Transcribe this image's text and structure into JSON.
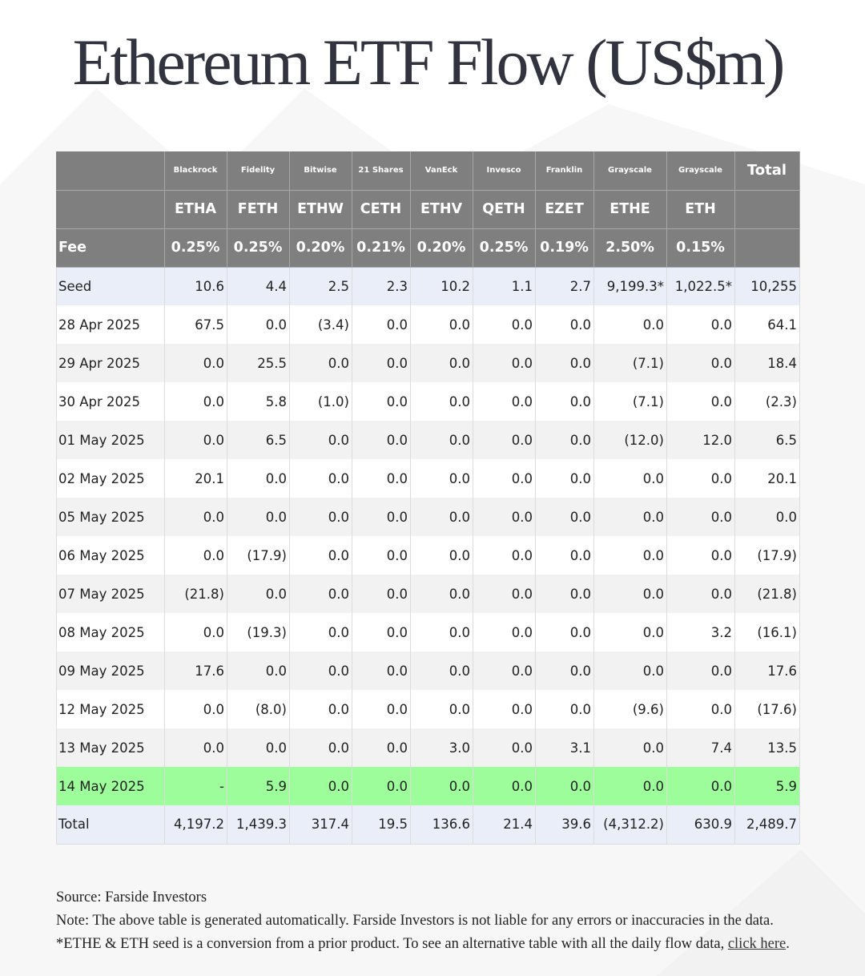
{
  "title": "Ethereum ETF Flow (US$m)",
  "header": {
    "issuers": [
      "",
      "Blackrock",
      "Fidelity",
      "Bitwise",
      "21 Shares",
      "VanEck",
      "Invesco",
      "Franklin",
      "Grayscale",
      "Grayscale"
    ],
    "total_label": "Total",
    "tickers": [
      "",
      "ETHA",
      "FETH",
      "ETHW",
      "CETH",
      "ETHV",
      "QETH",
      "EZET",
      "ETHE",
      "ETH",
      ""
    ],
    "fee_label": "Fee",
    "fees": [
      "0.25%",
      "0.25%",
      "0.20%",
      "0.21%",
      "0.20%",
      "0.25%",
      "0.19%",
      "2.50%",
      "0.15%",
      ""
    ]
  },
  "rows": [
    {
      "cells": [
        "Seed",
        "10.6",
        "4.4",
        "2.5",
        "2.3",
        "10.2",
        "1.1",
        "2.7",
        "9,199.3*",
        "1,022.5*",
        "10,255"
      ]
    },
    {
      "cells": [
        "28 Apr 2025",
        "67.5",
        "0.0",
        "(3.4)",
        "0.0",
        "0.0",
        "0.0",
        "0.0",
        "0.0",
        "0.0",
        "64.1"
      ]
    },
    {
      "cells": [
        "29 Apr 2025",
        "0.0",
        "25.5",
        "0.0",
        "0.0",
        "0.0",
        "0.0",
        "0.0",
        "(7.1)",
        "0.0",
        "18.4"
      ]
    },
    {
      "cells": [
        "30 Apr 2025",
        "0.0",
        "5.8",
        "(1.0)",
        "0.0",
        "0.0",
        "0.0",
        "0.0",
        "(7.1)",
        "0.0",
        "(2.3)"
      ]
    },
    {
      "cells": [
        "01 May 2025",
        "0.0",
        "6.5",
        "0.0",
        "0.0",
        "0.0",
        "0.0",
        "0.0",
        "(12.0)",
        "12.0",
        "6.5"
      ]
    },
    {
      "cells": [
        "02 May 2025",
        "20.1",
        "0.0",
        "0.0",
        "0.0",
        "0.0",
        "0.0",
        "0.0",
        "0.0",
        "0.0",
        "20.1"
      ]
    },
    {
      "cells": [
        "05 May 2025",
        "0.0",
        "0.0",
        "0.0",
        "0.0",
        "0.0",
        "0.0",
        "0.0",
        "0.0",
        "0.0",
        "0.0"
      ]
    },
    {
      "cells": [
        "06 May 2025",
        "0.0",
        "(17.9)",
        "0.0",
        "0.0",
        "0.0",
        "0.0",
        "0.0",
        "0.0",
        "0.0",
        "(17.9)"
      ]
    },
    {
      "cells": [
        "07 May 2025",
        "(21.8)",
        "0.0",
        "0.0",
        "0.0",
        "0.0",
        "0.0",
        "0.0",
        "0.0",
        "0.0",
        "(21.8)"
      ]
    },
    {
      "cells": [
        "08 May 2025",
        "0.0",
        "(19.3)",
        "0.0",
        "0.0",
        "0.0",
        "0.0",
        "0.0",
        "0.0",
        "3.2",
        "(16.1)"
      ]
    },
    {
      "cells": [
        "09 May 2025",
        "17.6",
        "0.0",
        "0.0",
        "0.0",
        "0.0",
        "0.0",
        "0.0",
        "0.0",
        "0.0",
        "17.6"
      ]
    },
    {
      "cells": [
        "12 May 2025",
        "0.0",
        "(8.0)",
        "0.0",
        "0.0",
        "0.0",
        "0.0",
        "0.0",
        "(9.6)",
        "0.0",
        "(17.6)"
      ]
    },
    {
      "cells": [
        "13 May 2025",
        "0.0",
        "0.0",
        "0.0",
        "0.0",
        "3.0",
        "0.0",
        "3.1",
        "0.0",
        "7.4",
        "13.5"
      ]
    },
    {
      "cells": [
        "14 May 2025",
        "-",
        "5.9",
        "0.0",
        "0.0",
        "0.0",
        "0.0",
        "0.0",
        "0.0",
        "0.0",
        "5.9"
      ],
      "highlight": true
    },
    {
      "cells": [
        "Total",
        "4,197.2",
        "1,439.3",
        "317.4",
        "19.5",
        "136.6",
        "21.4",
        "39.6",
        "(4,312.2)",
        "630.9",
        "2,489.7"
      ]
    }
  ],
  "colors": {
    "header_bg": "#7f7f7f",
    "negative": "#e0141e",
    "highlight_row": "#9dfd9a",
    "seed_total_bg": "#eaeef9",
    "alt_row_bg": "#f2f2f2"
  },
  "footer": {
    "source": "Source: Farside Investors",
    "note": "Note: The above table is generated automatically. Farside Investors is not liable for any errors or inaccuracies in the data. *ETHE & ETH seed is a conversion from a prior product.  To see an alternative table with all the daily flow data, ",
    "link_text": "click here",
    "note_end": "."
  }
}
